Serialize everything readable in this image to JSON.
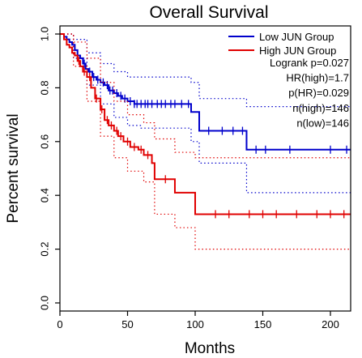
{
  "chart_data": {
    "type": "line",
    "subtype": "kaplan-meier",
    "title": "Overall Survival",
    "xlabel": "Months",
    "ylabel": "Percent survival",
    "xlim": [
      0,
      220
    ],
    "ylim": [
      0,
      1.0
    ],
    "x_ticks": [
      0,
      50,
      100,
      150,
      200
    ],
    "y_ticks": [
      0.0,
      0.2,
      0.4,
      0.6,
      0.8,
      1.0
    ],
    "grid": false,
    "legend_position": "top-right",
    "legend": [
      {
        "label": "Low JUN Group",
        "color": "#0000cc"
      },
      {
        "label": "High JUN Group",
        "color": "#e00000"
      }
    ],
    "stats": [
      "Logrank p=0.027",
      "HR(high)=1.7",
      "p(HR)=0.029",
      "n(high)=146",
      "n(low)=146"
    ],
    "series": [
      {
        "name": "Low JUN Group",
        "color": "#0000cc",
        "steps": [
          [
            0,
            1.0
          ],
          [
            3,
            0.99
          ],
          [
            5,
            0.98
          ],
          [
            7,
            0.97
          ],
          [
            9,
            0.96
          ],
          [
            11,
            0.94
          ],
          [
            13,
            0.92
          ],
          [
            15,
            0.91
          ],
          [
            17,
            0.89
          ],
          [
            19,
            0.87
          ],
          [
            21,
            0.86
          ],
          [
            24,
            0.84
          ],
          [
            27,
            0.83
          ],
          [
            30,
            0.82
          ],
          [
            33,
            0.81
          ],
          [
            36,
            0.79
          ],
          [
            40,
            0.78
          ],
          [
            43,
            0.77
          ],
          [
            46,
            0.76
          ],
          [
            50,
            0.75
          ],
          [
            55,
            0.74
          ],
          [
            97,
            0.71
          ],
          [
            103,
            0.64
          ],
          [
            138,
            0.57
          ],
          [
            215,
            0.57
          ]
        ],
        "censor_x": [
          18,
          22,
          25,
          28,
          32,
          35,
          37,
          39,
          42,
          45,
          48,
          52,
          55,
          57,
          60,
          63,
          65,
          68,
          72,
          75,
          78,
          82,
          85,
          90,
          95,
          110,
          120,
          128,
          135,
          145,
          152,
          170,
          200,
          212
        ],
        "ci_upper": [
          [
            0,
            1.0
          ],
          [
            10,
            0.98
          ],
          [
            20,
            0.93
          ],
          [
            30,
            0.89
          ],
          [
            40,
            0.86
          ],
          [
            50,
            0.84
          ],
          [
            60,
            0.84
          ],
          [
            97,
            0.82
          ],
          [
            103,
            0.76
          ],
          [
            138,
            0.73
          ],
          [
            215,
            0.73
          ]
        ],
        "ci_lower": [
          [
            0,
            1.0
          ],
          [
            10,
            0.91
          ],
          [
            20,
            0.81
          ],
          [
            30,
            0.74
          ],
          [
            40,
            0.69
          ],
          [
            50,
            0.66
          ],
          [
            60,
            0.65
          ],
          [
            97,
            0.6
          ],
          [
            103,
            0.52
          ],
          [
            138,
            0.41
          ],
          [
            215,
            0.41
          ]
        ]
      },
      {
        "name": "High JUN Group",
        "color": "#e00000",
        "steps": [
          [
            0,
            1.0
          ],
          [
            3,
            0.98
          ],
          [
            5,
            0.96
          ],
          [
            7,
            0.95
          ],
          [
            9,
            0.93
          ],
          [
            11,
            0.92
          ],
          [
            13,
            0.9
          ],
          [
            15,
            0.88
          ],
          [
            17,
            0.86
          ],
          [
            20,
            0.84
          ],
          [
            23,
            0.8
          ],
          [
            26,
            0.76
          ],
          [
            30,
            0.72
          ],
          [
            33,
            0.68
          ],
          [
            36,
            0.66
          ],
          [
            40,
            0.64
          ],
          [
            43,
            0.62
          ],
          [
            47,
            0.6
          ],
          [
            52,
            0.58
          ],
          [
            58,
            0.57
          ],
          [
            62,
            0.55
          ],
          [
            68,
            0.52
          ],
          [
            70,
            0.46
          ],
          [
            85,
            0.41
          ],
          [
            100,
            0.33
          ],
          [
            215,
            0.33
          ]
        ],
        "censor_x": [
          14,
          18,
          22,
          27,
          31,
          35,
          38,
          42,
          45,
          50,
          55,
          60,
          65,
          78,
          115,
          125,
          140,
          150,
          160,
          175,
          190,
          200,
          210
        ],
        "ci_upper": [
          [
            0,
            1.0
          ],
          [
            10,
            0.97
          ],
          [
            20,
            0.91
          ],
          [
            30,
            0.82
          ],
          [
            40,
            0.75
          ],
          [
            50,
            0.7
          ],
          [
            62,
            0.67
          ],
          [
            70,
            0.61
          ],
          [
            85,
            0.56
          ],
          [
            100,
            0.54
          ],
          [
            215,
            0.54
          ]
        ],
        "ci_lower": [
          [
            0,
            1.0
          ],
          [
            10,
            0.88
          ],
          [
            20,
            0.75
          ],
          [
            30,
            0.62
          ],
          [
            40,
            0.54
          ],
          [
            50,
            0.49
          ],
          [
            62,
            0.45
          ],
          [
            70,
            0.33
          ],
          [
            85,
            0.28
          ],
          [
            100,
            0.2
          ],
          [
            215,
            0.2
          ]
        ]
      }
    ]
  }
}
